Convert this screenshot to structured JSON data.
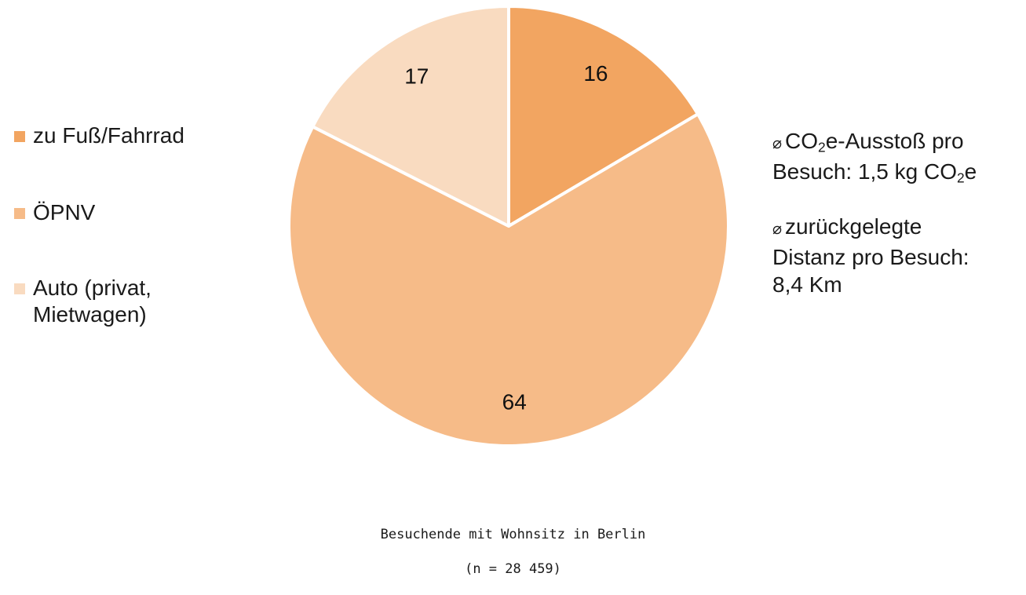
{
  "chart_data": {
    "type": "pie",
    "categories": [
      "zu Fuß/Fahrrad",
      "ÖPNV",
      "Auto (privat,\nMietwagen)"
    ],
    "values": [
      16,
      64,
      17
    ],
    "colors": [
      "#f2a561",
      "#f6bb88",
      "#f9dbc0"
    ],
    "slice_labels": [
      "16",
      "64",
      "17"
    ],
    "legend_position": "left",
    "start": "12 o'clock, clockwise"
  },
  "stats": {
    "co2": {
      "line1_prefix": "⌀",
      "line1_a": "CO",
      "line1_sub": "2",
      "line1_b": "e-Ausstoß pro",
      "line2_a": "Besuch:  1,5 kg CO",
      "line2_sub": "2",
      "line2_b": "e"
    },
    "distance": {
      "line1_prefix": "⌀",
      "line1": "zurückgelegte",
      "line2": "Distanz pro Besuch:",
      "line3": "8,4 Km"
    }
  },
  "caption": {
    "line1": "Besuchende mit Wohnsitz in Berlin",
    "line2": "(n = 28 459)"
  }
}
